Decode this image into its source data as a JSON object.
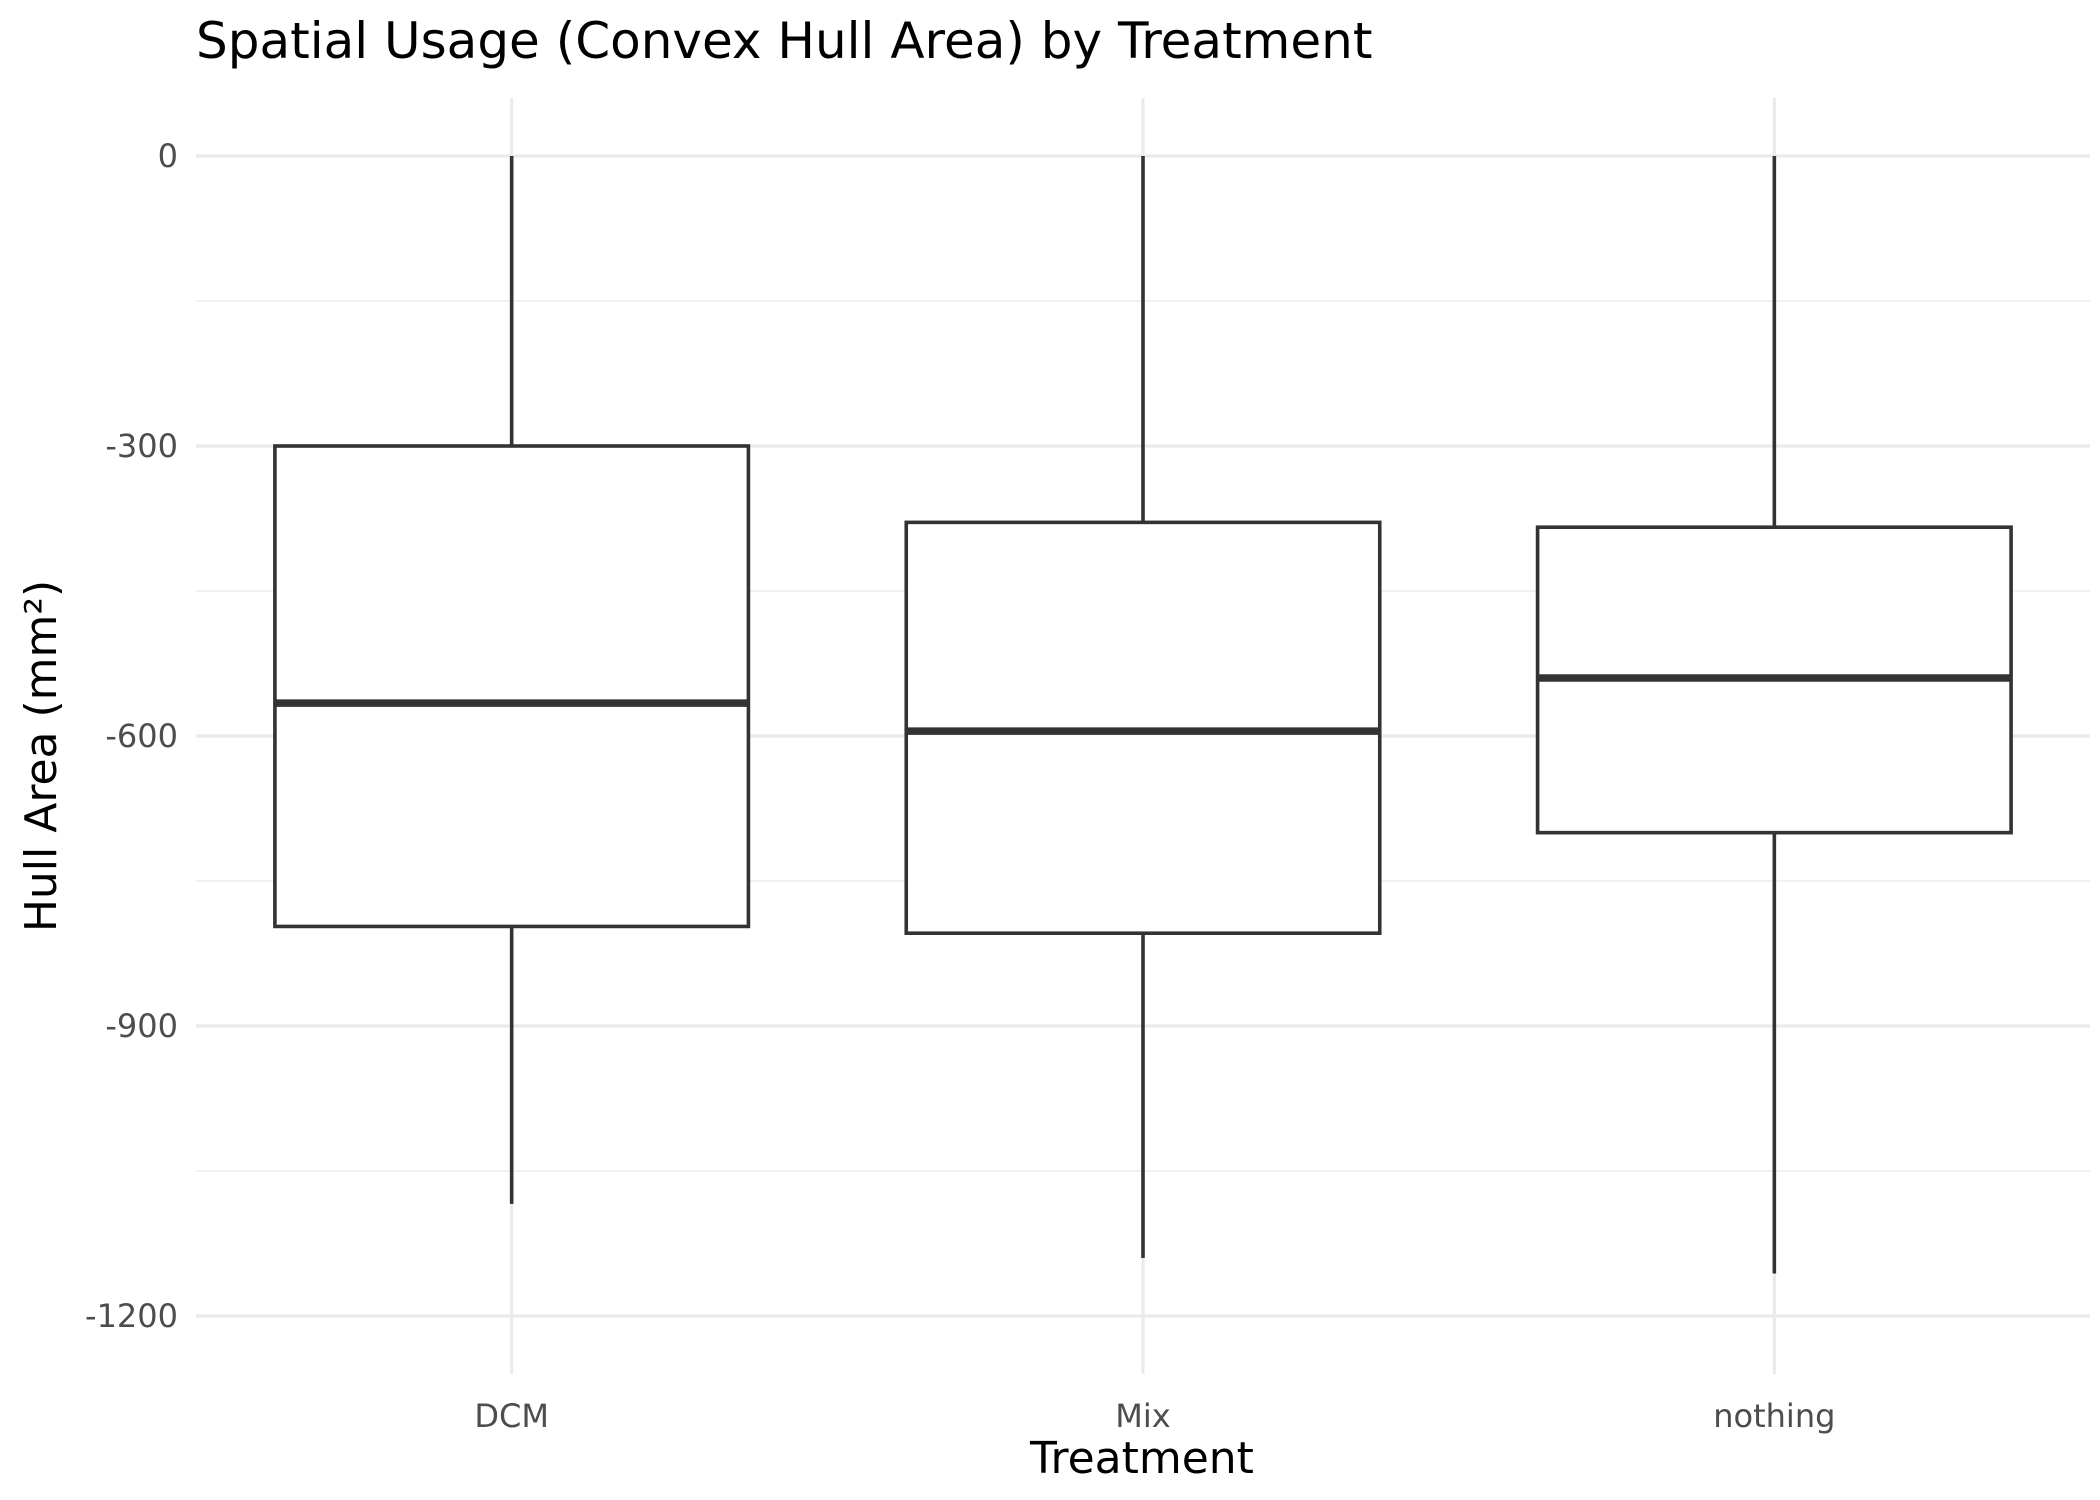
{
  "chart_data": {
    "type": "boxplot",
    "title": "Spatial Usage (Convex Hull Area) by Treatment",
    "xlabel": "Treatment",
    "ylabel": "Hull Area (mm²)",
    "categories": [
      "DCM",
      "Mix",
      "nothing"
    ],
    "boxes": [
      {
        "category": "DCM",
        "lower_whisker": -1084,
        "q1": -797,
        "median": -566,
        "q3": -300,
        "upper_whisker": 0
      },
      {
        "category": "Mix",
        "lower_whisker": -1140,
        "q1": -804,
        "median": -595,
        "q3": -379,
        "upper_whisker": 0
      },
      {
        "category": "nothing",
        "lower_whisker": -1156,
        "q1": -700,
        "median": -540,
        "q3": -384,
        "upper_whisker": 0
      }
    ],
    "ylim": [
      -1260,
      60
    ],
    "yticks": [
      0,
      -300,
      -600,
      -900,
      -1200
    ],
    "ytick_labels": [
      "0",
      "-300",
      "-600",
      "-900",
      "-1200"
    ],
    "y_minor_ticks": [
      -150,
      -450,
      -750,
      -1050
    ],
    "grid": true,
    "legend": "none"
  }
}
